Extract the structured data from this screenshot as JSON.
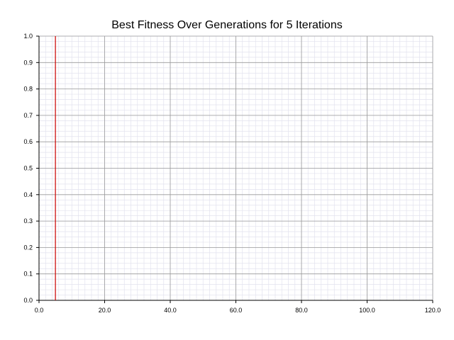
{
  "chart_data": {
    "type": "line",
    "title": "Best Fitness Over Generations for 5 Iterations",
    "xlabel": "",
    "ylabel": "",
    "xlim": [
      0,
      120
    ],
    "ylim": [
      0,
      1
    ],
    "x_ticks": [
      "0.0",
      "20.0",
      "40.0",
      "60.0",
      "80.0",
      "100.0",
      "120.0"
    ],
    "y_ticks": [
      "0.0",
      "0.1",
      "0.2",
      "0.3",
      "0.4",
      "0.5",
      "0.6",
      "0.7",
      "0.8",
      "0.9",
      "1.0"
    ],
    "grid": true,
    "legend": "none",
    "series": [
      {
        "color": "#cc0000",
        "points": [
          {
            "x": 5,
            "y": 0.0
          },
          {
            "x": 5,
            "y": 1.0
          }
        ]
      }
    ]
  }
}
